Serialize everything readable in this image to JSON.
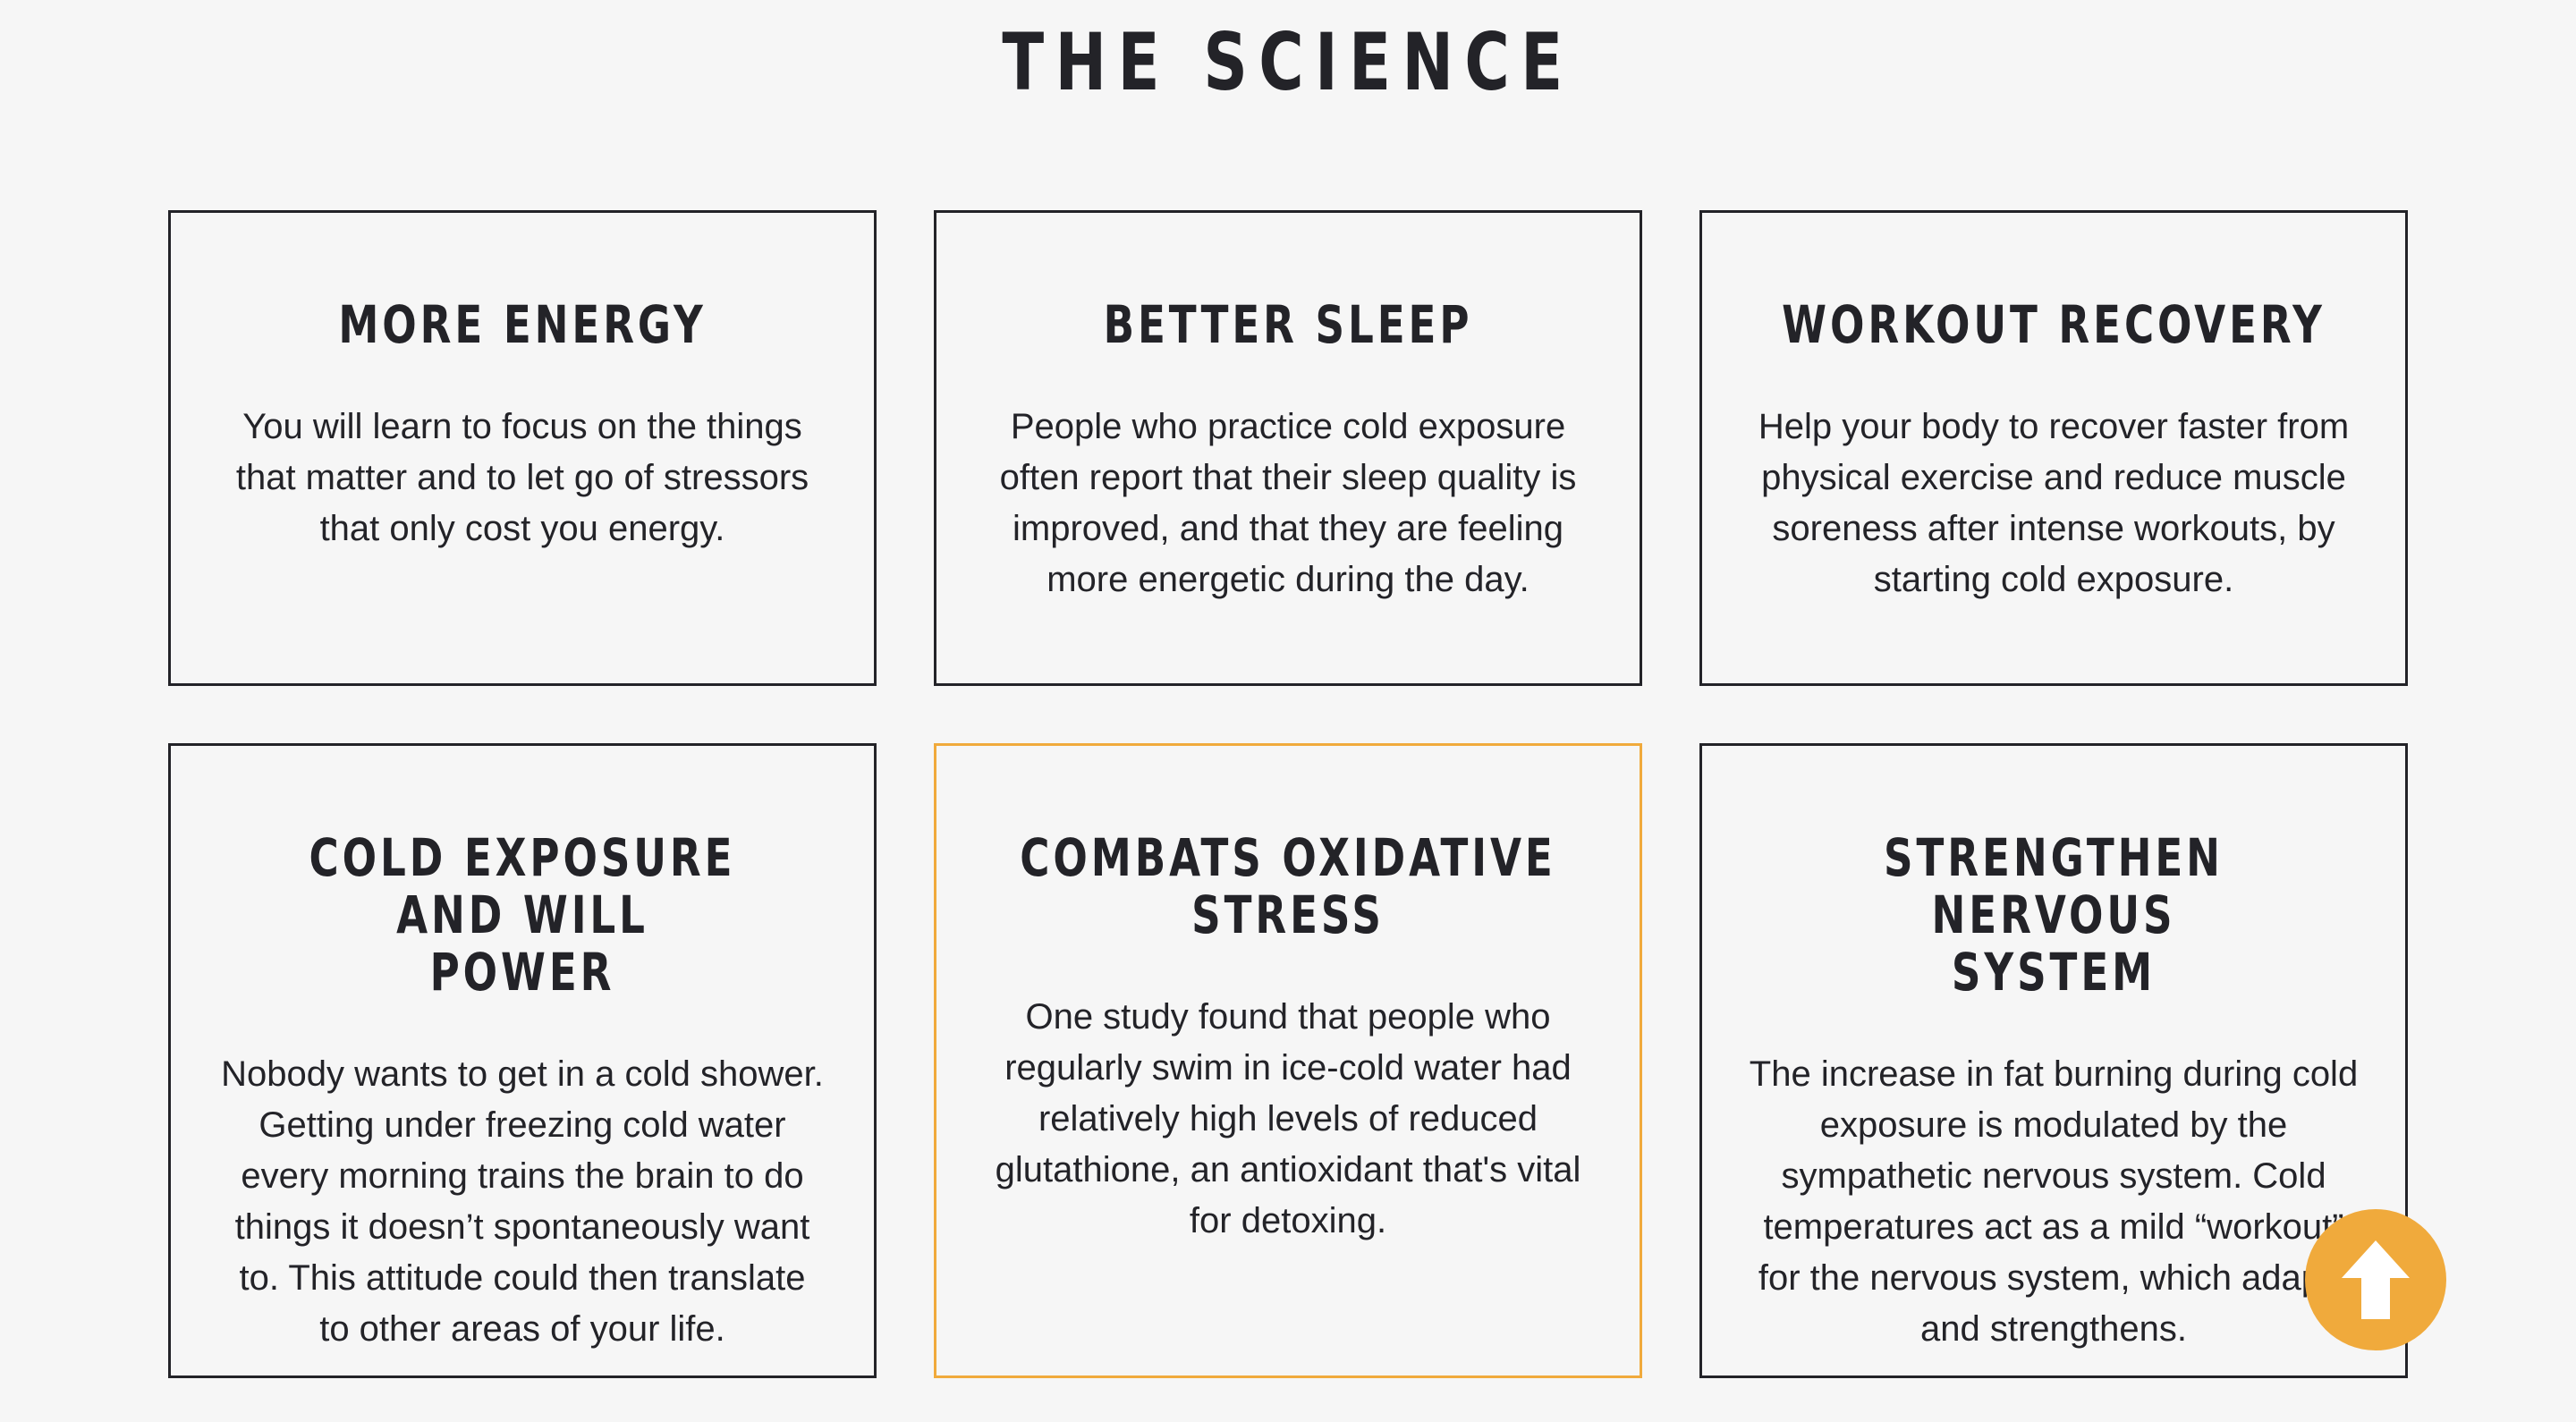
{
  "section": {
    "title": "THE SCIENCE"
  },
  "cards": [
    {
      "title": "MORE ENERGY",
      "text": "You will learn to focus on the things\nthat matter and to let go of stressors\nthat only cost you energy."
    },
    {
      "title": "BETTER SLEEP",
      "text": "People who practice cold exposure\noften report that their sleep quality is\nimproved, and that they are feeling\nmore energetic during the day."
    },
    {
      "title": "WORKOUT RECOVERY",
      "text": "Help your body to recover faster from\nphysical exercise and reduce muscle\nsoreness after intense workouts, by\nstarting cold exposure."
    },
    {
      "title": "COLD EXPOSURE AND WILL\nPOWER",
      "text": "Nobody wants to get in a cold shower.\nGetting under freezing cold water\nevery morning trains the brain to do\nthings it doesn’t spontaneously want\nto. This attitude could then translate\nto other areas of your life."
    },
    {
      "title": "COMBATS OXIDATIVE\nSTRESS",
      "text": "One study found that people who\nregularly swim in ice-cold water had\nrelatively high levels of reduced\nglutathione, an antioxidant that's vital\nfor detoxing."
    },
    {
      "title": "STRENGTHEN NERVOUS\nSYSTEM",
      "text": "The increase in fat burning during cold\nexposure is modulated by the\nsympathetic nervous system. Cold\ntemperatures act as a mild “workout”\nfor the nervous system, which adapts\nand strengthens."
    }
  ],
  "scroll_top": {
    "icon": "arrow-up-icon"
  },
  "colors": {
    "background": "#f6f6f6",
    "text": "#232328",
    "accent": "#f0aa3c",
    "border": "#232328"
  }
}
